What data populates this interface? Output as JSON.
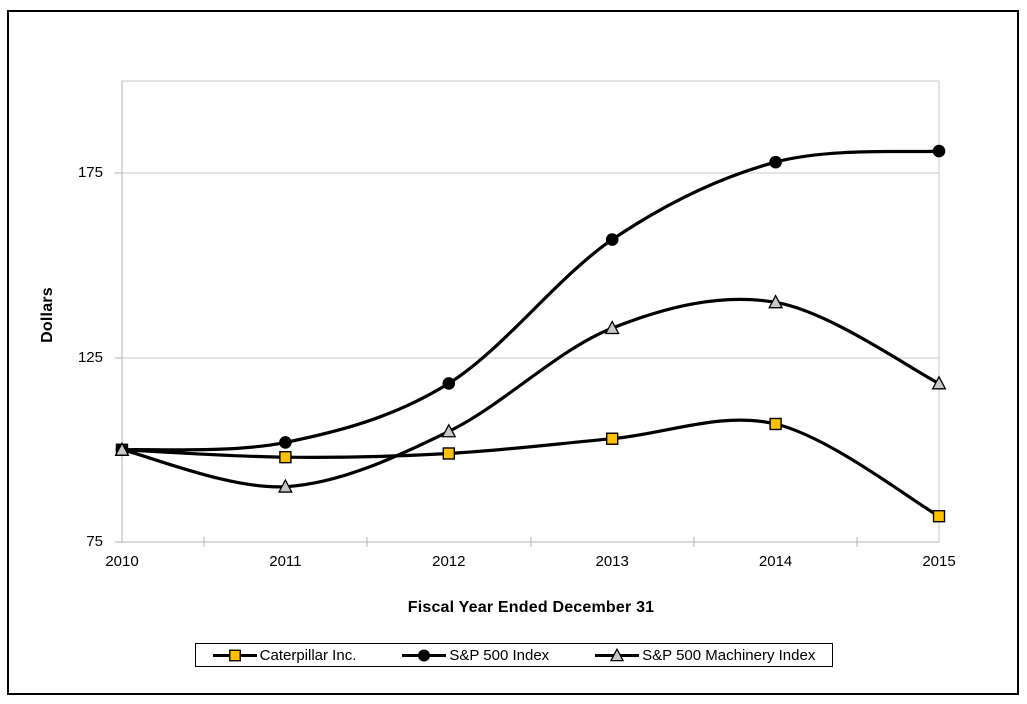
{
  "chart_data": {
    "type": "line",
    "line_style": "smooth",
    "xlabel": "Fiscal Year Ended December 31",
    "ylabel": "Dollars",
    "categories": [
      "2010",
      "2011",
      "2012",
      "2013",
      "2014",
      "2015"
    ],
    "y_ticks": [
      75,
      125,
      175
    ],
    "ylim": [
      75,
      200
    ],
    "grid": "horizontal",
    "legend_position": "bottom",
    "series": [
      {
        "name": "Caterpillar Inc.",
        "marker": "square",
        "marker_color": "#FFC000",
        "line_color": "#000000",
        "values": [
          100,
          98,
          99,
          103,
          107,
          82
        ]
      },
      {
        "name": "S&P 500 Index",
        "marker": "circle",
        "marker_color": "#000000",
        "line_color": "#000000",
        "values": [
          100,
          102,
          118,
          157,
          178,
          181
        ]
      },
      {
        "name": "S&P 500 Machinery Index",
        "marker": "triangle",
        "marker_color": "#C8C8C8",
        "line_color": "#000000",
        "values": [
          100,
          90,
          105,
          133,
          140,
          118
        ]
      }
    ],
    "style": {
      "grid_color": "#C9C9C9",
      "axis_color": "#B3B3B3",
      "frame_color": "#000000",
      "background": "#FFFFFF"
    }
  }
}
